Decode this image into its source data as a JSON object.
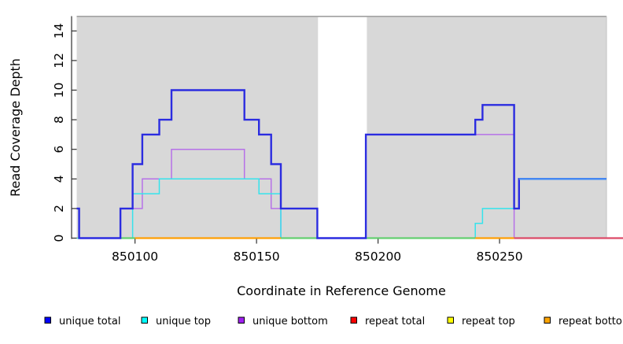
{
  "chart_data": {
    "type": "line",
    "subtype": "step-coverage",
    "title": "",
    "xlabel": "Coordinate in Reference Genome",
    "ylabel": "Read Coverage Depth",
    "xlim": [
      850076,
      850294
    ],
    "ylim": [
      0,
      15
    ],
    "grid": false,
    "plot_bg": "#d8d8d8",
    "plot_border_top": "#a2a2a2",
    "plot_border_right": "#c2c2c2",
    "masked_region": {
      "x1": 850175.3,
      "x2": 850195.4,
      "color": "#ffffff"
    },
    "xticks": {
      "values": [
        850100,
        850150,
        850200,
        850250
      ],
      "labels": [
        "850100",
        "850150",
        "850200",
        "850250"
      ]
    },
    "yticks": {
      "values": [
        0,
        2,
        4,
        6,
        8,
        10,
        12,
        14
      ],
      "labels": [
        "0",
        "2",
        "4",
        "6",
        "8",
        "10",
        "12",
        "14"
      ]
    },
    "series": [
      {
        "name": "repeat total",
        "legend_color": "#ff0000",
        "line_color": "#e03a3a",
        "width": 1.2,
        "x": [
          850076
        ],
        "v": [
          0
        ],
        "xend": 850294
      },
      {
        "name": "repeat top",
        "legend_color": "#ffff00",
        "line_color": "#ffee00",
        "width": 1.2,
        "x": [
          850076
        ],
        "v": [
          0
        ],
        "xend": 850294
      },
      {
        "name": "repeat bottom",
        "legend_color": "#ffa500",
        "line_color": "#ff9f04",
        "width": 1.8,
        "x": [
          850076
        ],
        "v": [
          0
        ],
        "xend": 850294
      },
      {
        "name": "unique bottom",
        "legend_color": "#a020f0",
        "line_color": "#b671e8",
        "width": 1.5,
        "x": [
          850076,
          850077,
          850094,
          850103,
          850115,
          850145,
          850156,
          850160,
          850195,
          850256
        ],
        "v": [
          2,
          0,
          2,
          4,
          6,
          4,
          2,
          0,
          7,
          0
        ],
        "xend": 850294
      },
      {
        "name": "unique top",
        "legend_color": "#00ffff",
        "line_color": "#35e3ec",
        "width": 1.5,
        "x": [
          850076,
          850099,
          850110,
          850151,
          850160,
          850240,
          850243,
          850258
        ],
        "v": [
          0,
          3,
          4,
          3,
          0,
          1,
          2,
          4
        ],
        "xend": 850294
      },
      {
        "name": "unique total",
        "legend_color": "#0000ff",
        "line_color": "#2b2ce0",
        "width": 2.4,
        "x": [
          850076,
          850077,
          850094,
          850099,
          850103,
          850110,
          850115,
          850145,
          850151,
          850156,
          850160,
          850175,
          850195,
          850240,
          850243,
          850256,
          850258
        ],
        "v": [
          2,
          0,
          2,
          5,
          7,
          8,
          10,
          8,
          7,
          5,
          2,
          0,
          7,
          8,
          9,
          2,
          4
        ],
        "xend": 850294
      }
    ],
    "zero_segments": [
      {
        "x1": 850094,
        "x2": 850100,
        "color": "#63cf70"
      },
      {
        "x1": 850100,
        "x2": 850160,
        "color": "#ff9f04"
      },
      {
        "x1": 850160,
        "x2": 850175,
        "color": "#63cf70"
      },
      {
        "x1": 850195.4,
        "x2": 850240,
        "color": "#63cf70"
      },
      {
        "x1": 850240,
        "x2": 850256,
        "color": "#ff9f04"
      },
      {
        "x1": 850256,
        "x2": 850301,
        "color": "#dc4a67"
      }
    ],
    "highlight_segment": {
      "x1": 850258,
      "x2": 850294,
      "y": 4,
      "color": "#448bf3",
      "width": 2.4
    },
    "legend_position": "bottom"
  },
  "legend": {
    "items": [
      {
        "label": "unique total",
        "color": "#0000ff"
      },
      {
        "label": "unique top",
        "color": "#00ffff"
      },
      {
        "label": "unique bottom",
        "color": "#a020f0"
      },
      {
        "label": "repeat total",
        "color": "#ff0000"
      },
      {
        "label": "repeat top",
        "color": "#ffff00"
      },
      {
        "label": "repeat bottom",
        "color": "#ffa500"
      }
    ]
  }
}
